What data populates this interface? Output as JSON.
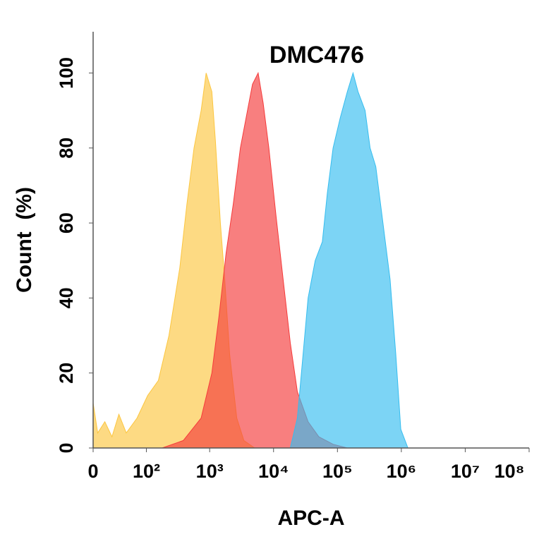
{
  "chart_data": {
    "type": "area",
    "title": "DMC476",
    "x_label": "APC-A",
    "y_label": "Count  (%)",
    "xscale": "biexponential",
    "xlim": [
      0,
      100000000
    ],
    "ylim": [
      0,
      111
    ],
    "xticks": [
      0,
      {
        "value": 100,
        "label": "10²"
      },
      {
        "value": 1000,
        "label": "10³"
      },
      {
        "value": 10000,
        "label": "10⁴"
      },
      {
        "value": 100000,
        "label": "10⁵"
      },
      {
        "value": 1000000,
        "label": "10⁶"
      },
      {
        "value": 10000000,
        "label": "10⁷"
      },
      {
        "value": 100000000,
        "label": "10⁸"
      }
    ],
    "yticks": [
      0,
      20,
      40,
      60,
      80,
      100
    ],
    "series": [
      {
        "color": "#fcc640",
        "x": [
          0,
          5,
          13,
          22,
          32,
          45,
          70,
          105,
          156,
          230,
          340,
          440,
          569,
          735,
          881,
          1081,
          1230,
          1472,
          1718,
          2056,
          2655,
          3436,
          5047
        ],
        "values": [
          12,
          4,
          7,
          3,
          9,
          4,
          8,
          14,
          18,
          30,
          48,
          65,
          80,
          90,
          100,
          95,
          82,
          60,
          45,
          25,
          8,
          2,
          0
        ]
      },
      {
        "color": "#f53b3b",
        "x": [
          179,
          386,
          735,
          1081,
          1396,
          1807,
          2339,
          3020,
          3908,
          4677,
          5741,
          6871,
          8450,
          10914,
          14125,
          18281,
          23605,
          34754,
          51050,
          85310,
          142890
        ],
        "values": [
          0,
          2,
          8,
          20,
          35,
          52,
          65,
          80,
          90,
          97,
          100,
          92,
          80,
          62,
          45,
          28,
          15,
          7,
          3,
          1,
          0
        ]
      },
      {
        "color": "#35bdef",
        "x": [
          18281,
          23605,
          28973,
          34754,
          44870,
          58070,
          69500,
          85310,
          110400,
          142890,
          175400,
          209900,
          271000,
          324300,
          399000,
          515200,
          666800,
          818500,
          979500,
          1267000
        ],
        "values": [
          0,
          8,
          25,
          40,
          50,
          55,
          68,
          80,
          88,
          95,
          100,
          95,
          90,
          80,
          75,
          60,
          45,
          25,
          5,
          0
        ]
      }
    ]
  }
}
